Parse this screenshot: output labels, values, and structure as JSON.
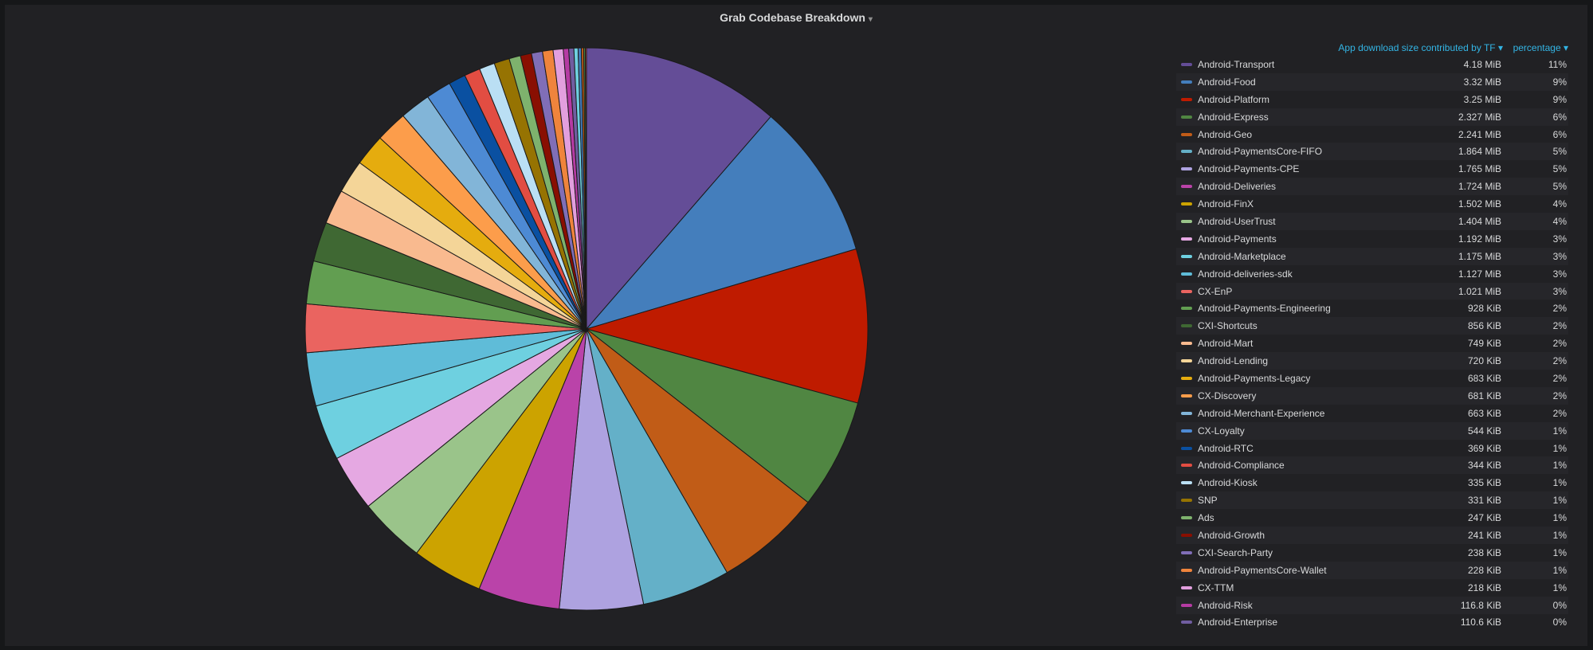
{
  "panel": {
    "title": "Grab Codebase Breakdown"
  },
  "legend_header": {
    "value_label": "App download size contributed by TF",
    "pct_label": "percentage"
  },
  "chart_data": {
    "type": "pie",
    "title": "Grab Codebase Breakdown",
    "legend_position": "right",
    "slices": [
      {
        "name": "Android-Transport",
        "value": "4.18 MiB",
        "percent": "11%",
        "size_kib": 4280,
        "color": "#644d97"
      },
      {
        "name": "Android-Food",
        "value": "3.32 MiB",
        "percent": "9%",
        "size_kib": 3400,
        "color": "#447ebc"
      },
      {
        "name": "Android-Platform",
        "value": "3.25 MiB",
        "percent": "9%",
        "size_kib": 3328,
        "color": "#bf1b00"
      },
      {
        "name": "Android-Express",
        "value": "2.327 MiB",
        "percent": "6%",
        "size_kib": 2383,
        "color": "#508642"
      },
      {
        "name": "Android-Geo",
        "value": "2.241 MiB",
        "percent": "6%",
        "size_kib": 2295,
        "color": "#c15c17"
      },
      {
        "name": "Android-PaymentsCore-FIFO",
        "value": "1.864 MiB",
        "percent": "5%",
        "size_kib": 1909,
        "color": "#64b0c8"
      },
      {
        "name": "Android-Payments-CPE",
        "value": "1.765 MiB",
        "percent": "5%",
        "size_kib": 1807,
        "color": "#aea2e0"
      },
      {
        "name": "Android-Deliveries",
        "value": "1.724 MiB",
        "percent": "5%",
        "size_kib": 1765,
        "color": "#ba43a9"
      },
      {
        "name": "Android-FinX",
        "value": "1.502 MiB",
        "percent": "4%",
        "size_kib": 1538,
        "color": "#cca300"
      },
      {
        "name": "Android-UserTrust",
        "value": "1.404 MiB",
        "percent": "4%",
        "size_kib": 1438,
        "color": "#9ac48a"
      },
      {
        "name": "Android-Payments",
        "value": "1.192 MiB",
        "percent": "3%",
        "size_kib": 1221,
        "color": "#e5a8e2"
      },
      {
        "name": "Android-Marketplace",
        "value": "1.175 MiB",
        "percent": "3%",
        "size_kib": 1203,
        "color": "#6ed0e0"
      },
      {
        "name": "Android-deliveries-sdk",
        "value": "1.127 MiB",
        "percent": "3%",
        "size_kib": 1154,
        "color": "#5fbcd8"
      },
      {
        "name": "CX-EnP",
        "value": "1.021 MiB",
        "percent": "3%",
        "size_kib": 1046,
        "color": "#ea6460"
      },
      {
        "name": "Android-Payments-Engineering",
        "value": "928 KiB",
        "percent": "2%",
        "size_kib": 928,
        "color": "#629e51"
      },
      {
        "name": "CXI-Shortcuts",
        "value": "856 KiB",
        "percent": "2%",
        "size_kib": 856,
        "color": "#3f6833"
      },
      {
        "name": "Android-Mart",
        "value": "749 KiB",
        "percent": "2%",
        "size_kib": 749,
        "color": "#f9ba8f"
      },
      {
        "name": "Android-Lending",
        "value": "720 KiB",
        "percent": "2%",
        "size_kib": 720,
        "color": "#f4d598"
      },
      {
        "name": "Android-Payments-Legacy",
        "value": "683 KiB",
        "percent": "2%",
        "size_kib": 683,
        "color": "#e5ac0e"
      },
      {
        "name": "CX-Discovery",
        "value": "681 KiB",
        "percent": "2%",
        "size_kib": 681,
        "color": "#fc9d4b"
      },
      {
        "name": "Android-Merchant-Experience",
        "value": "663 KiB",
        "percent": "2%",
        "size_kib": 663,
        "color": "#82b5d8"
      },
      {
        "name": "CX-Loyalty",
        "value": "544 KiB",
        "percent": "1%",
        "size_kib": 544,
        "color": "#4d8ad4"
      },
      {
        "name": "Android-RTC",
        "value": "369 KiB",
        "percent": "1%",
        "size_kib": 369,
        "color": "#0a50a1"
      },
      {
        "name": "Android-Compliance",
        "value": "344 KiB",
        "percent": "1%",
        "size_kib": 344,
        "color": "#e24d42"
      },
      {
        "name": "Android-Kiosk",
        "value": "335 KiB",
        "percent": "1%",
        "size_kib": 335,
        "color": "#badff4"
      },
      {
        "name": "SNP",
        "value": "331 KiB",
        "percent": "1%",
        "size_kib": 331,
        "color": "#967302"
      },
      {
        "name": "Ads",
        "value": "247 KiB",
        "percent": "1%",
        "size_kib": 247,
        "color": "#7eb26d"
      },
      {
        "name": "Android-Growth",
        "value": "241 KiB",
        "percent": "1%",
        "size_kib": 241,
        "color": "#890f02"
      },
      {
        "name": "CXI-Search-Party",
        "value": "238 KiB",
        "percent": "1%",
        "size_kib": 238,
        "color": "#806eb7"
      },
      {
        "name": "Android-PaymentsCore-Wallet",
        "value": "228 KiB",
        "percent": "1%",
        "size_kib": 228,
        "color": "#ef843c"
      },
      {
        "name": "CX-TTM",
        "value": "218 KiB",
        "percent": "1%",
        "size_kib": 218,
        "color": "#e29fde"
      },
      {
        "name": "Android-Risk",
        "value": "116.8 KiB",
        "percent": "0%",
        "size_kib": 116.8,
        "color": "#b53ba3"
      },
      {
        "name": "Android-Enterprise",
        "value": "110.6 KiB",
        "percent": "0%",
        "size_kib": 110.6,
        "color": "#705da0"
      }
    ],
    "hidden_tail_slices": [
      {
        "size_kib": 90,
        "color": "#6ed0e0"
      },
      {
        "size_kib": 70,
        "color": "#447ebc"
      },
      {
        "size_kib": 50,
        "color": "#c15c17"
      },
      {
        "size_kib": 35,
        "color": "#508642"
      },
      {
        "size_kib": 25,
        "color": "#e24d42"
      }
    ]
  }
}
